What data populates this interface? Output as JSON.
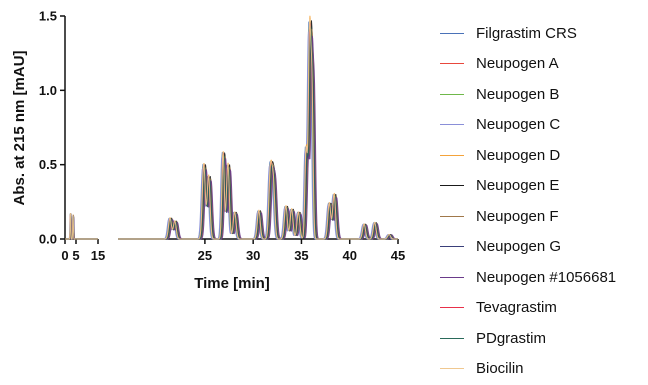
{
  "chart_data": {
    "type": "line",
    "title": "",
    "xlabel": "Time [min]",
    "ylabel": "Abs. at 215 nm [mAU]",
    "x_axis_segments": [
      {
        "range": [
          0,
          15
        ],
        "ticks": [
          "0",
          "5",
          "15"
        ],
        "tick_values": [
          0,
          5,
          15
        ]
      },
      {
        "range": [
          16,
          45
        ],
        "ticks": [
          "25",
          "30",
          "35",
          "40",
          "45"
        ],
        "tick_values": [
          25,
          30,
          35,
          40,
          45
        ]
      }
    ],
    "ylim": [
      0,
      1.5
    ],
    "y_ticks": [
      "0.0",
      "0.5",
      "1.0",
      "1.5"
    ],
    "y_tick_values": [
      0,
      0.5,
      1.0,
      1.5
    ],
    "grid": false,
    "legend_position": "right",
    "series": [
      {
        "name": "Filgrastim CRS",
        "color": "#4a72b8",
        "x_shift": 0.0,
        "scale": 1.0
      },
      {
        "name": "Neupogen A",
        "color": "#e8473c",
        "x_shift": 0.15,
        "scale": 0.97
      },
      {
        "name": "Neupogen B",
        "color": "#6fb84a",
        "x_shift": 0.05,
        "scale": 0.98
      },
      {
        "name": "Neupogen C",
        "color": "#8a8fd8",
        "x_shift": -0.05,
        "scale": 0.95
      },
      {
        "name": "Neupogen D",
        "color": "#f4a33a",
        "x_shift": 0.1,
        "scale": 1.02
      },
      {
        "name": "Neupogen E",
        "color": "#1a1a1a",
        "x_shift": 0.25,
        "scale": 1.0
      },
      {
        "name": "Neupogen F",
        "color": "#a0784a",
        "x_shift": 0.3,
        "scale": 0.96
      },
      {
        "name": "Neupogen G",
        "color": "#3a3f7a",
        "x_shift": 0.2,
        "scale": 0.94
      },
      {
        "name": "Neupogen #1056681",
        "color": "#6a3a8a",
        "x_shift": 0.35,
        "scale": 0.93
      },
      {
        "name": "Tevagrastim",
        "color": "#e8304a",
        "x_shift": 0.12,
        "scale": 0.99
      },
      {
        "name": "PDgrastim",
        "color": "#2a6a5a",
        "x_shift": 0.18,
        "scale": 0.97
      },
      {
        "name": "Biocilin",
        "color": "#f0c890",
        "x_shift": 0.08,
        "scale": 1.01
      }
    ],
    "peaks": [
      {
        "t": 2.4,
        "h": 0.17
      },
      {
        "t": 3.6,
        "h": 0.16
      },
      {
        "t": 21.3,
        "h": 0.14
      },
      {
        "t": 21.8,
        "h": 0.12
      },
      {
        "t": 24.8,
        "h": 0.5
      },
      {
        "t": 25.3,
        "h": 0.42
      },
      {
        "t": 26.8,
        "h": 0.58
      },
      {
        "t": 27.3,
        "h": 0.5
      },
      {
        "t": 28.0,
        "h": 0.18
      },
      {
        "t": 30.5,
        "h": 0.19
      },
      {
        "t": 31.7,
        "h": 0.45
      },
      {
        "t": 32.0,
        "h": 0.38
      },
      {
        "t": 33.3,
        "h": 0.22
      },
      {
        "t": 33.9,
        "h": 0.2
      },
      {
        "t": 34.6,
        "h": 0.18
      },
      {
        "t": 35.4,
        "h": 0.6
      },
      {
        "t": 35.75,
        "h": 1.32
      },
      {
        "t": 36.0,
        "h": 1.0
      },
      {
        "t": 37.8,
        "h": 0.24
      },
      {
        "t": 38.3,
        "h": 0.3
      },
      {
        "t": 41.4,
        "h": 0.1
      },
      {
        "t": 42.5,
        "h": 0.11
      },
      {
        "t": 44.0,
        "h": 0.03
      }
    ]
  }
}
